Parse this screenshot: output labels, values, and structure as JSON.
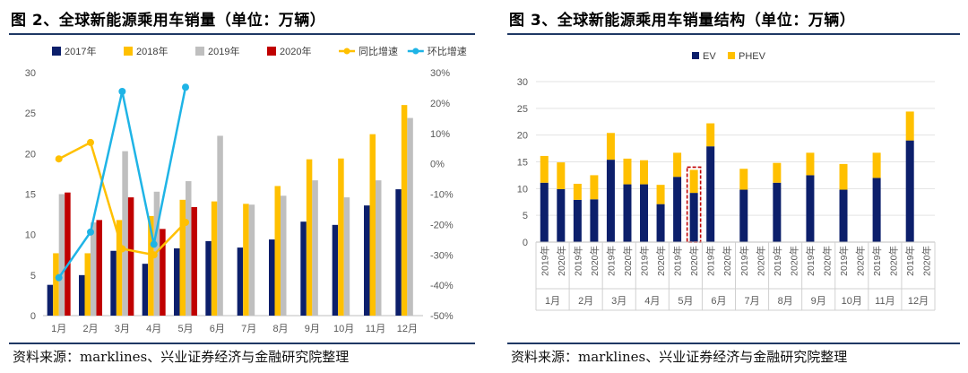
{
  "colors": {
    "y2017": "#0c1f6b",
    "y2018": "#ffc000",
    "y2019": "#bfbfbf",
    "y2020": "#c00000",
    "yoy": "#ffc000",
    "mom": "#1fb4e6",
    "ev": "#0c1f6b",
    "phev": "#ffc000",
    "highlight": "#c00000",
    "rule": "#1f3864"
  },
  "left": {
    "title": "图 2、全球新能源乘用车销量（单位：万辆）",
    "source": "资料来源：marklines、兴业证券经济与金融研究院整理"
  },
  "right": {
    "title": "图 3、全球新能源乘用车销量结构（单位：万辆）",
    "source": "资料来源：marklines、兴业证券经济与金融研究院整理"
  },
  "chart_data": [
    {
      "type": "bar",
      "title": "全球新能源乘用车销量（单位：万辆）",
      "categories": [
        "1月",
        "2月",
        "3月",
        "4月",
        "5月",
        "6月",
        "7月",
        "8月",
        "9月",
        "10月",
        "11月",
        "12月"
      ],
      "series": [
        {
          "name": "2017年",
          "values": [
            3.8,
            5.0,
            8.0,
            6.4,
            8.3,
            9.2,
            8.4,
            9.4,
            11.6,
            11.2,
            13.6,
            15.6
          ]
        },
        {
          "name": "2018年",
          "values": [
            7.7,
            7.7,
            11.8,
            12.3,
            14.3,
            14.1,
            13.8,
            16.0,
            19.3,
            19.4,
            22.4,
            26.0
          ]
        },
        {
          "name": "2019年",
          "values": [
            15.0,
            11.5,
            20.3,
            15.3,
            16.6,
            22.2,
            13.7,
            14.8,
            16.7,
            14.6,
            16.7,
            24.4
          ]
        },
        {
          "name": "2020年",
          "values": [
            15.2,
            11.8,
            14.6,
            10.7,
            13.4,
            null,
            null,
            null,
            null,
            null,
            null,
            null
          ]
        }
      ],
      "lines": [
        {
          "name": "同比增速",
          "axis": "right",
          "values": [
            1.6,
            7.0,
            -28.0,
            -30.0,
            -19.3,
            null,
            null,
            null,
            null,
            null,
            null,
            null
          ]
        },
        {
          "name": "环比增速",
          "axis": "right",
          "values": [
            -37.5,
            -22.5,
            23.8,
            -26.5,
            25.2,
            null,
            null,
            null,
            null,
            null,
            null,
            null
          ]
        }
      ],
      "ylim": [
        0,
        30
      ],
      "yticks": [
        0,
        5,
        10,
        15,
        20,
        25,
        30
      ],
      "y2lim": [
        -50,
        30
      ],
      "y2ticks": [
        "30%",
        "20%",
        "10%",
        "0%",
        "-10%",
        "-20%",
        "-30%",
        "-40%",
        "-50%"
      ],
      "legend": "top"
    },
    {
      "type": "bar",
      "stacked": true,
      "title": "全球新能源乘用车销量结构（单位：万辆）",
      "months": [
        "1月",
        "2月",
        "3月",
        "4月",
        "5月",
        "6月",
        "7月",
        "8月",
        "9月",
        "10月",
        "11月",
        "12月"
      ],
      "years": [
        "2019年",
        "2020年"
      ],
      "series": [
        {
          "name": "EV",
          "values": [
            [
              11.1,
              9.9
            ],
            [
              7.9,
              8.0
            ],
            [
              15.4,
              10.8
            ],
            [
              10.8,
              7.1
            ],
            [
              12.2,
              9.2
            ],
            [
              17.9,
              null
            ],
            [
              9.8,
              null
            ],
            [
              11.1,
              null
            ],
            [
              12.5,
              null
            ],
            [
              9.8,
              null
            ],
            [
              12.0,
              null
            ],
            [
              19.0,
              null
            ]
          ]
        },
        {
          "name": "PHEV",
          "values": [
            [
              5.0,
              5.0
            ],
            [
              3.0,
              4.5
            ],
            [
              5.0,
              4.8
            ],
            [
              4.5,
              3.6
            ],
            [
              4.5,
              4.3
            ],
            [
              4.3,
              null
            ],
            [
              3.9,
              null
            ],
            [
              3.7,
              null
            ],
            [
              4.2,
              null
            ],
            [
              4.8,
              null
            ],
            [
              4.7,
              null
            ],
            [
              5.4,
              null
            ]
          ]
        }
      ],
      "highlight": "5月 2020年",
      "ylim": [
        0,
        30
      ],
      "yticks": [
        0,
        5,
        10,
        15,
        20,
        25,
        30
      ],
      "legend": "top"
    }
  ]
}
